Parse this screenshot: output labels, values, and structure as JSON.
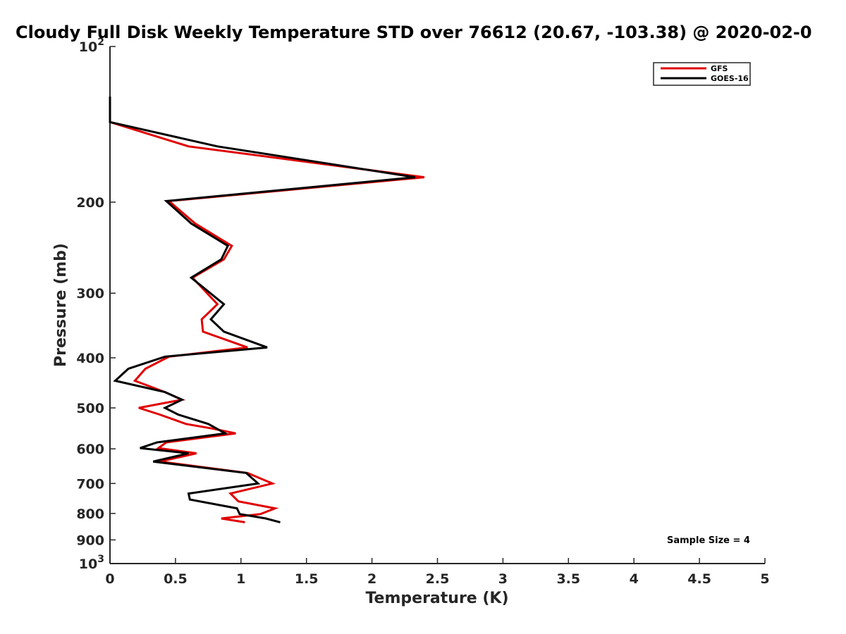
{
  "chart_data": {
    "type": "line",
    "title": "Cloudy Full Disk Weekly Temperature STD over 76612 (20.67, -103.38) @ 2020-02-0",
    "xlabel": "Temperature (K)",
    "ylabel": "Pressure (mb)",
    "xlim": [
      0,
      5
    ],
    "ylim": [
      100,
      1000
    ],
    "y_scale": "log",
    "y_reversed": true,
    "grid": false,
    "x_ticks": [
      0,
      0.5,
      1,
      1.5,
      2,
      2.5,
      3,
      3.5,
      4,
      4.5,
      5
    ],
    "x_tick_labels": [
      "0",
      "0.5",
      "1",
      "1.5",
      "2",
      "2.5",
      "3",
      "3.5",
      "4",
      "4.5",
      "5"
    ],
    "y_ticks": [
      100,
      200,
      300,
      400,
      500,
      600,
      700,
      800,
      900,
      1000
    ],
    "y_tick_labels": [
      {
        "base": "10",
        "exp": "2"
      },
      {
        "base": "200",
        "exp": ""
      },
      {
        "base": "300",
        "exp": ""
      },
      {
        "base": "400",
        "exp": ""
      },
      {
        "base": "500",
        "exp": ""
      },
      {
        "base": "600",
        "exp": ""
      },
      {
        "base": "700",
        "exp": ""
      },
      {
        "base": "800",
        "exp": ""
      },
      {
        "base": "900",
        "exp": ""
      },
      {
        "base": "10",
        "exp": "3"
      }
    ],
    "legend_position": "top-right",
    "annotation": "Sample Size = 4",
    "series": [
      {
        "name": "GFS",
        "color": "#e00000",
        "points": [
          {
            "x": 0.0,
            "p": 125
          },
          {
            "x": 0.0,
            "p": 140
          },
          {
            "x": 0.6,
            "p": 156
          },
          {
            "x": 2.4,
            "p": 179
          },
          {
            "x": 0.45,
            "p": 199
          },
          {
            "x": 0.65,
            "p": 220
          },
          {
            "x": 0.93,
            "p": 243
          },
          {
            "x": 0.87,
            "p": 258
          },
          {
            "x": 0.63,
            "p": 280
          },
          {
            "x": 0.82,
            "p": 315
          },
          {
            "x": 0.7,
            "p": 337
          },
          {
            "x": 0.71,
            "p": 356
          },
          {
            "x": 1.05,
            "p": 382
          },
          {
            "x": 0.45,
            "p": 398
          },
          {
            "x": 0.27,
            "p": 420
          },
          {
            "x": 0.19,
            "p": 443
          },
          {
            "x": 0.42,
            "p": 466
          },
          {
            "x": 0.55,
            "p": 482
          },
          {
            "x": 0.22,
            "p": 500
          },
          {
            "x": 0.38,
            "p": 515
          },
          {
            "x": 0.58,
            "p": 537
          },
          {
            "x": 0.78,
            "p": 548
          },
          {
            "x": 0.96,
            "p": 560
          },
          {
            "x": 0.43,
            "p": 583
          },
          {
            "x": 0.37,
            "p": 598
          },
          {
            "x": 0.66,
            "p": 612
          },
          {
            "x": 0.38,
            "p": 635
          },
          {
            "x": 1.05,
            "p": 668
          },
          {
            "x": 1.24,
            "p": 700
          },
          {
            "x": 0.92,
            "p": 732
          },
          {
            "x": 0.98,
            "p": 758
          },
          {
            "x": 1.26,
            "p": 782
          },
          {
            "x": 1.15,
            "p": 802
          },
          {
            "x": 0.85,
            "p": 818
          },
          {
            "x": 1.03,
            "p": 832
          }
        ]
      },
      {
        "name": "GOES-16",
        "color": "#000000",
        "points": [
          {
            "x": 0.0,
            "p": 125
          },
          {
            "x": 0.0,
            "p": 140
          },
          {
            "x": 0.82,
            "p": 156
          },
          {
            "x": 2.33,
            "p": 179
          },
          {
            "x": 0.43,
            "p": 199
          },
          {
            "x": 0.62,
            "p": 220
          },
          {
            "x": 0.9,
            "p": 243
          },
          {
            "x": 0.85,
            "p": 258
          },
          {
            "x": 0.62,
            "p": 280
          },
          {
            "x": 0.87,
            "p": 315
          },
          {
            "x": 0.77,
            "p": 337
          },
          {
            "x": 0.87,
            "p": 356
          },
          {
            "x": 1.2,
            "p": 382
          },
          {
            "x": 0.42,
            "p": 398
          },
          {
            "x": 0.14,
            "p": 420
          },
          {
            "x": 0.04,
            "p": 443
          },
          {
            "x": 0.42,
            "p": 466
          },
          {
            "x": 0.55,
            "p": 482
          },
          {
            "x": 0.42,
            "p": 500
          },
          {
            "x": 0.52,
            "p": 515
          },
          {
            "x": 0.75,
            "p": 537
          },
          {
            "x": 0.88,
            "p": 560
          },
          {
            "x": 0.36,
            "p": 583
          },
          {
            "x": 0.23,
            "p": 598
          },
          {
            "x": 0.6,
            "p": 612
          },
          {
            "x": 0.33,
            "p": 635
          },
          {
            "x": 1.04,
            "p": 668
          },
          {
            "x": 1.13,
            "p": 700
          },
          {
            "x": 0.6,
            "p": 732
          },
          {
            "x": 0.61,
            "p": 752
          },
          {
            "x": 0.97,
            "p": 782
          },
          {
            "x": 0.99,
            "p": 802
          },
          {
            "x": 1.19,
            "p": 818
          },
          {
            "x": 1.3,
            "p": 832
          }
        ]
      }
    ]
  }
}
